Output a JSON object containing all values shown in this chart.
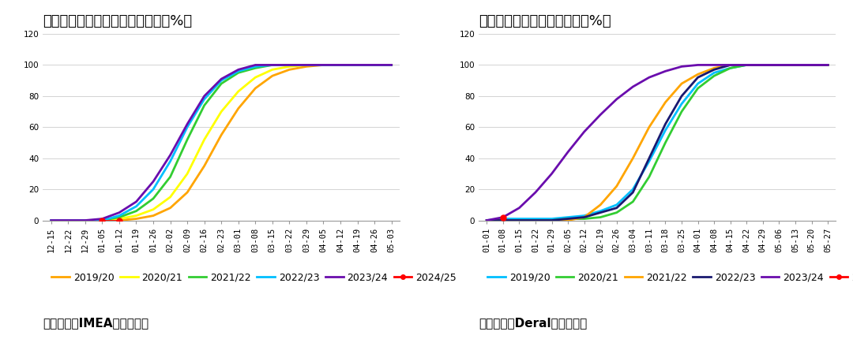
{
  "left_title": "图：马托格罗索州大豆收割进度（%）",
  "right_title": "图：帕拉纳州大豆收割进度（%）",
  "left_source": "数据来源：IMEA，国富期货",
  "right_source": "数据来源：Deral，国富期货",
  "ylim": [
    0,
    120
  ],
  "yticks": [
    0,
    20,
    40,
    60,
    80,
    100,
    120
  ],
  "left_xticks": [
    "12-15",
    "12-22",
    "12-29",
    "01-05",
    "01-12",
    "01-19",
    "01-26",
    "02-02",
    "02-09",
    "02-16",
    "02-23",
    "03-01",
    "03-08",
    "03-15",
    "03-22",
    "03-29",
    "04-05",
    "04-12",
    "04-19",
    "04-26",
    "05-03"
  ],
  "right_xticks": [
    "01-01",
    "01-08",
    "01-15",
    "01-22",
    "01-29",
    "02-05",
    "02-12",
    "02-19",
    "02-26",
    "03-04",
    "03-11",
    "03-18",
    "03-25",
    "04-01",
    "04-08",
    "04-15",
    "04-22",
    "04-29",
    "05-06",
    "05-13",
    "05-20",
    "05-27"
  ],
  "left_series": {
    "2019/20": {
      "color": "#FFA500",
      "x": [
        0,
        1,
        2,
        3,
        4,
        5,
        6,
        7,
        8,
        9,
        10,
        11,
        12,
        13,
        14,
        15,
        16,
        17,
        18,
        19,
        20
      ],
      "y": [
        0,
        0,
        0,
        0,
        0,
        1,
        3,
        8,
        18,
        35,
        55,
        72,
        85,
        93,
        97,
        99,
        100,
        100,
        100,
        100,
        100
      ]
    },
    "2020/21": {
      "color": "#FFFF00",
      "x": [
        0,
        1,
        2,
        3,
        4,
        5,
        6,
        7,
        8,
        9,
        10,
        11,
        12,
        13,
        14,
        15,
        16,
        17,
        18,
        19,
        20
      ],
      "y": [
        0,
        0,
        0,
        0,
        1,
        3,
        7,
        15,
        30,
        52,
        70,
        83,
        92,
        97,
        99,
        100,
        100,
        100,
        100,
        100,
        100
      ]
    },
    "2021/22": {
      "color": "#32CD32",
      "x": [
        0,
        1,
        2,
        3,
        4,
        5,
        6,
        7,
        8,
        9,
        10,
        11,
        12,
        13,
        14,
        15,
        16,
        17,
        18,
        19,
        20
      ],
      "y": [
        0,
        0,
        0,
        0,
        2,
        6,
        14,
        28,
        52,
        74,
        88,
        95,
        98,
        100,
        100,
        100,
        100,
        100,
        100,
        100,
        100
      ]
    },
    "2022/23": {
      "color": "#00BFFF",
      "x": [
        0,
        1,
        2,
        3,
        4,
        5,
        6,
        7,
        8,
        9,
        10,
        11,
        12,
        13,
        14,
        15,
        16,
        17,
        18,
        19,
        20
      ],
      "y": [
        0,
        0,
        0,
        0,
        3,
        9,
        20,
        38,
        60,
        78,
        90,
        96,
        99,
        100,
        100,
        100,
        100,
        100,
        100,
        100,
        100
      ]
    },
    "2023/24": {
      "color": "#6A0DAD",
      "x": [
        0,
        1,
        2,
        3,
        4,
        5,
        6,
        7,
        8,
        9,
        10,
        11,
        12,
        13,
        14,
        15,
        16,
        17,
        18,
        19,
        20
      ],
      "y": [
        0,
        0,
        0,
        1,
        5,
        12,
        25,
        42,
        62,
        80,
        91,
        97,
        100,
        100,
        100,
        100,
        100,
        100,
        100,
        100,
        100
      ]
    },
    "2024/25": {
      "color": "#FF0000",
      "marker": true,
      "x": [
        3,
        4
      ],
      "y": [
        0,
        0
      ]
    }
  },
  "right_series": {
    "2019/20": {
      "color": "#00BFFF",
      "x": [
        0,
        1,
        2,
        3,
        4,
        5,
        6,
        7,
        8,
        9,
        10,
        11,
        12,
        13,
        14,
        15,
        16,
        17,
        18,
        19,
        20,
        21
      ],
      "y": [
        0,
        1,
        1,
        1,
        1,
        2,
        3,
        6,
        10,
        20,
        38,
        58,
        75,
        88,
        95,
        98,
        100,
        100,
        100,
        100,
        100,
        100
      ]
    },
    "2020/21": {
      "color": "#32CD32",
      "x": [
        0,
        1,
        2,
        3,
        4,
        5,
        6,
        7,
        8,
        9,
        10,
        11,
        12,
        13,
        14,
        15,
        16,
        17,
        18,
        19,
        20,
        21
      ],
      "y": [
        0,
        0,
        0,
        0,
        0,
        1,
        1,
        2,
        5,
        12,
        28,
        50,
        70,
        85,
        93,
        98,
        100,
        100,
        100,
        100,
        100,
        100
      ]
    },
    "2021/22": {
      "color": "#FFA500",
      "x": [
        0,
        1,
        2,
        3,
        4,
        5,
        6,
        7,
        8,
        9,
        10,
        11,
        12,
        13,
        14,
        15,
        16,
        17,
        18,
        19,
        20,
        21
      ],
      "y": [
        0,
        0,
        0,
        0,
        0,
        0,
        2,
        10,
        22,
        40,
        60,
        76,
        88,
        94,
        98,
        100,
        100,
        100,
        100,
        100,
        100,
        100
      ]
    },
    "2022/23": {
      "color": "#191970",
      "x": [
        0,
        1,
        2,
        3,
        4,
        5,
        6,
        7,
        8,
        9,
        10,
        11,
        12,
        13,
        14,
        15,
        16,
        17,
        18,
        19,
        20,
        21
      ],
      "y": [
        0,
        0,
        0,
        0,
        0,
        1,
        2,
        5,
        8,
        18,
        40,
        62,
        80,
        92,
        97,
        100,
        100,
        100,
        100,
        100,
        100,
        100
      ]
    },
    "2023/24": {
      "color": "#6A0DAD",
      "x": [
        0,
        1,
        2,
        3,
        4,
        5,
        6,
        7,
        8,
        9,
        10,
        11,
        12,
        13,
        14,
        15,
        16,
        17,
        18,
        19,
        20,
        21
      ],
      "y": [
        0,
        2,
        8,
        18,
        30,
        44,
        57,
        68,
        78,
        86,
        92,
        96,
        99,
        100,
        100,
        100,
        100,
        100,
        100,
        100,
        100,
        100
      ]
    },
    "2024/25": {
      "color": "#FF0000",
      "marker": true,
      "x": [
        1
      ],
      "y": [
        2
      ]
    }
  },
  "legend_order": [
    "2019/20",
    "2020/21",
    "2021/22",
    "2022/23",
    "2023/24",
    "2024/25"
  ],
  "left_legend_colors": [
    "#FFA500",
    "#FFFF00",
    "#32CD32",
    "#00BFFF",
    "#6A0DAD",
    "#FF0000"
  ],
  "right_legend_colors": [
    "#00BFFF",
    "#32CD32",
    "#FFA500",
    "#191970",
    "#6A0DAD",
    "#FF0000"
  ],
  "bg_color": "#FFFFFF",
  "title_fontsize": 13,
  "tick_fontsize": 7.5,
  "legend_fontsize": 9,
  "source_fontsize": 11,
  "linewidth": 2.0
}
